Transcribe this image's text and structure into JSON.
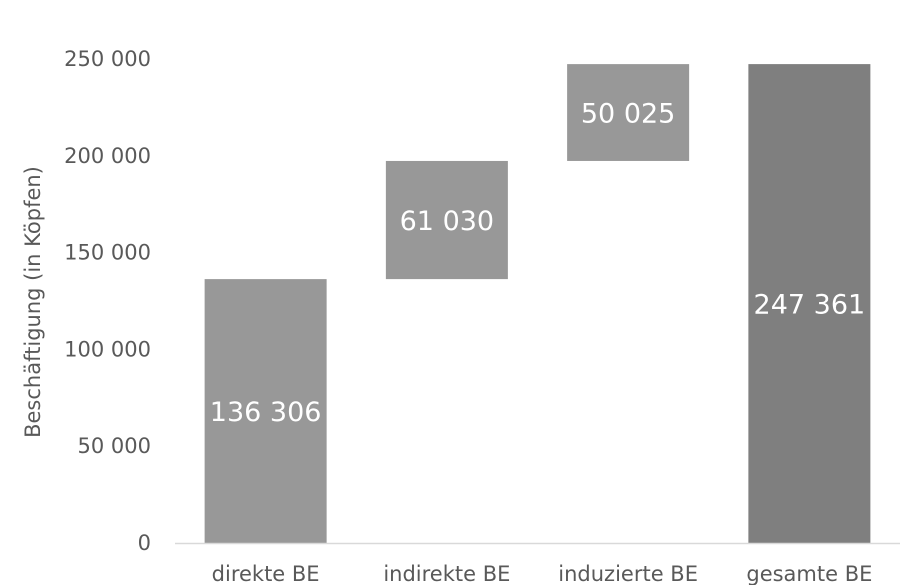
{
  "chart_data": {
    "type": "bar",
    "subtype": "waterfall",
    "title": "",
    "xlabel": "",
    "ylabel": "Beschäftigung (in Köpfen)",
    "ylim": [
      0,
      250000
    ],
    "yticks": [
      0,
      50000,
      100000,
      150000,
      200000,
      250000
    ],
    "ytick_labels": [
      "0",
      "50 000",
      "100 000",
      "150 000",
      "200 000",
      "250 000"
    ],
    "grid": false,
    "legend": "none",
    "categories": [
      "direkte BE",
      "indirekte BE",
      "induzierte BE",
      "gesamte BE"
    ],
    "bars": [
      {
        "category": "direkte BE",
        "start": 0,
        "end": 136306,
        "value": 136306,
        "label": "136 306",
        "color": "#989898"
      },
      {
        "category": "indirekte BE",
        "start": 136306,
        "end": 197336,
        "value": 61030,
        "label": "61 030",
        "color": "#989898"
      },
      {
        "category": "induzierte BE",
        "start": 197336,
        "end": 247361,
        "value": 50025,
        "label": "50 025",
        "color": "#989898"
      },
      {
        "category": "gesamte BE",
        "start": 0,
        "end": 247361,
        "value": 247361,
        "label": "247 361",
        "color": "#7f7f7f"
      }
    ],
    "axis_color": "#d9d9d9",
    "text_color": "#595959"
  }
}
